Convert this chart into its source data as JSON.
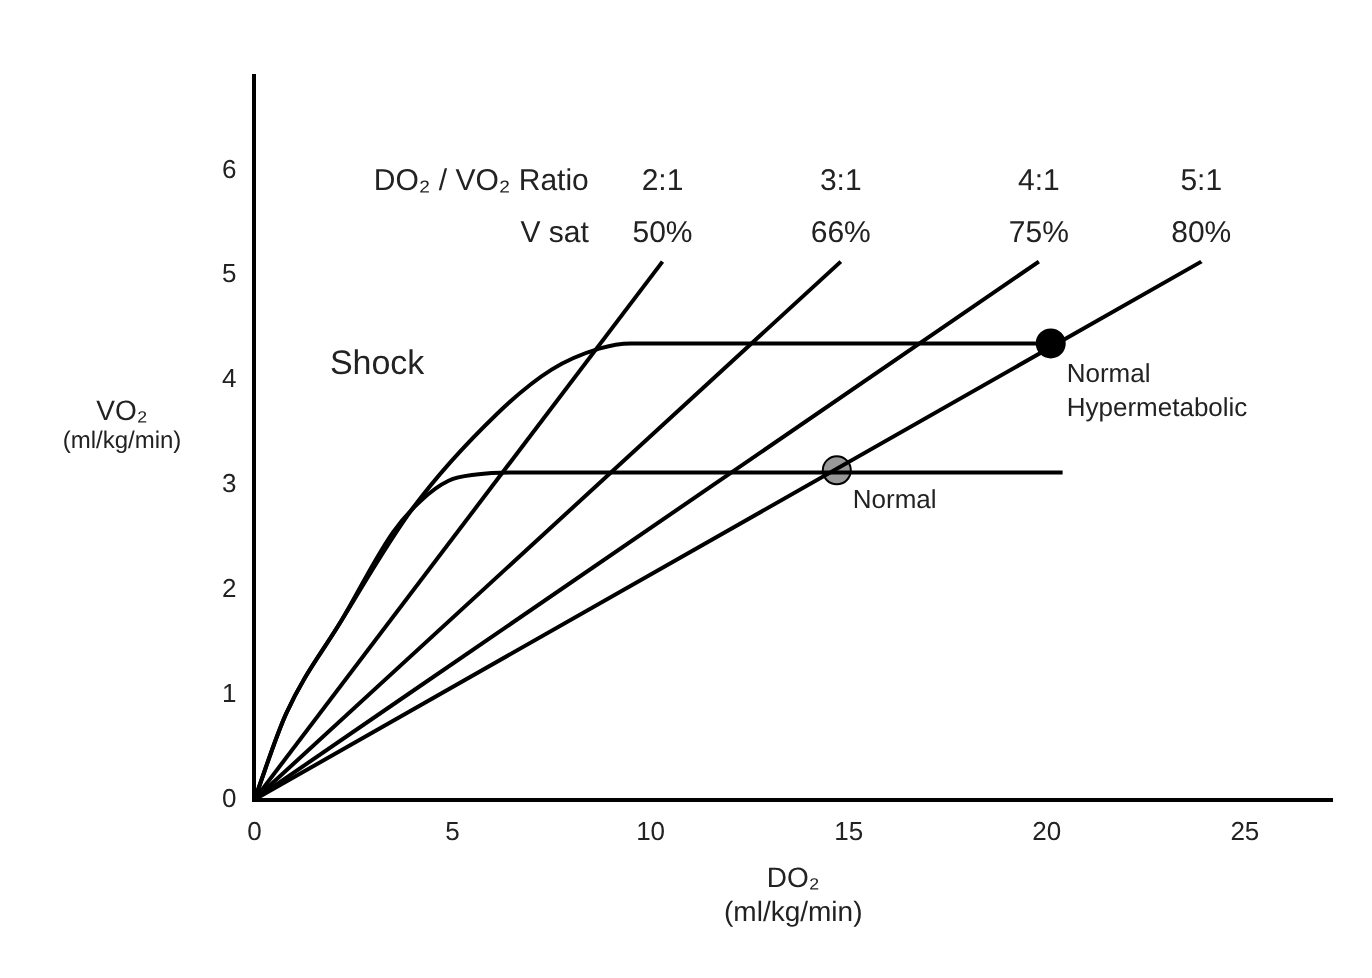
{
  "chart_data": {
    "type": "line",
    "xlabel": "DO₂\n(ml/kg/min)",
    "ylabel": "VO₂\n(ml/kg/min)",
    "xlim": [
      0,
      27.2
    ],
    "xticks": [
      0,
      5,
      10,
      15,
      20,
      25
    ],
    "ylim": [
      0,
      6.9
    ],
    "yticks": [
      0,
      1,
      2,
      3,
      4,
      5,
      6
    ],
    "grid": false,
    "legend": false,
    "series": [
      {
        "color": "#000000",
        "x": [
          0,
          0.8,
          2.2,
          4,
          6.1,
          7.5,
          8.7,
          9.5,
          20.1
        ],
        "values": [
          0,
          0.82,
          1.71,
          2.78,
          3.67,
          4.1,
          4.3,
          4.35,
          4.35
        ]
      },
      {
        "color": "#000000",
        "x": [
          0,
          0.8,
          2.2,
          3.5,
          4.2,
          4.9,
          5.6,
          6.5,
          20.4
        ],
        "values": [
          0,
          0.82,
          1.71,
          2.55,
          2.85,
          3.04,
          3.1,
          3.12,
          3.12
        ]
      },
      {
        "name": "2:1",
        "color": "#000000",
        "x": [
          0,
          10.3
        ],
        "values": [
          0,
          5.13
        ]
      },
      {
        "name": "3:1",
        "color": "#000000",
        "x": [
          0,
          14.8
        ],
        "values": [
          0,
          5.13
        ]
      },
      {
        "name": "4:1",
        "color": "#000000",
        "x": [
          0,
          19.8
        ],
        "values": [
          0,
          5.13
        ]
      },
      {
        "name": "5:1",
        "color": "#000000",
        "x": [
          0,
          23.9
        ],
        "values": [
          0,
          5.13
        ]
      },
      {
        "type": "scatter",
        "color": "#000000",
        "x": [
          20.1
        ],
        "values": [
          4.35
        ]
      },
      {
        "type": "scatter",
        "color": "#999999",
        "x": [
          14.7
        ],
        "values": [
          3.14
        ]
      }
    ],
    "annotations": [
      "DO₂ / VO₂ Ratio",
      "V sat",
      {
        "text": "50%",
        "x": 10.3,
        "y": 5.13
      },
      {
        "text": "66%",
        "x": 14.8,
        "y": 5.13
      },
      {
        "text": "75%",
        "x": 19.8,
        "y": 5.13
      },
      {
        "text": "80%",
        "x": 23.9,
        "y": 5.13
      },
      "Shock",
      {
        "text": "Normal\nHypermetabolic",
        "x": 20.1,
        "y": 4.35
      },
      {
        "text": "Normal",
        "x": 14.7,
        "y": 3.14
      }
    ]
  }
}
